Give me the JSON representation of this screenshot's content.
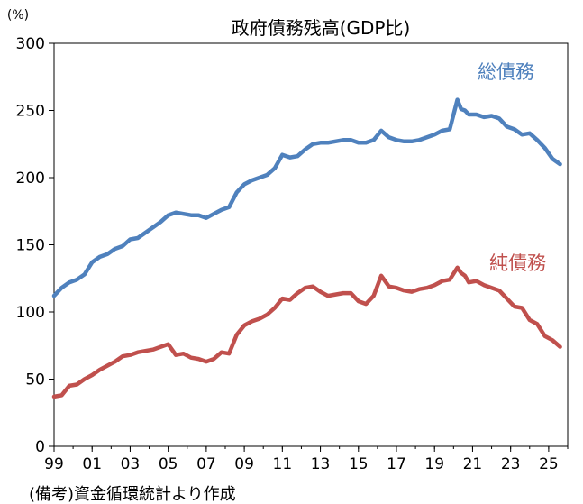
{
  "chart_data": {
    "type": "line",
    "title": "政府債務残高(GDP比)",
    "unit_label": "(%)",
    "note": "(備考)資金循環統計より作成",
    "ylim": [
      0,
      300
    ],
    "yticks": [
      "0",
      "50",
      "100",
      "150",
      "200",
      "250",
      "300"
    ],
    "xlim": [
      1999.0,
      2026.0
    ],
    "xticks": [
      "99",
      "01",
      "03",
      "05",
      "07",
      "09",
      "11",
      "13",
      "15",
      "17",
      "19",
      "21",
      "23",
      "25"
    ],
    "grid": false,
    "series": [
      {
        "name": "総債務",
        "color": "#4F81BD",
        "x": [
          1999.0,
          1999.4,
          1999.8,
          2000.2,
          2000.6,
          2001.0,
          2001.4,
          2001.8,
          2002.2,
          2002.6,
          2003.0,
          2003.4,
          2003.8,
          2004.2,
          2004.6,
          2005.0,
          2005.4,
          2005.8,
          2006.2,
          2006.6,
          2007.0,
          2007.4,
          2007.8,
          2008.2,
          2008.6,
          2009.0,
          2009.4,
          2009.8,
          2010.2,
          2010.6,
          2011.0,
          2011.4,
          2011.8,
          2012.2,
          2012.6,
          2013.0,
          2013.4,
          2013.8,
          2014.2,
          2014.6,
          2015.0,
          2015.4,
          2015.8,
          2016.2,
          2016.6,
          2017.0,
          2017.4,
          2017.8,
          2018.2,
          2018.6,
          2019.0,
          2019.4,
          2019.8,
          2020.2,
          2020.4,
          2020.6,
          2020.8,
          2021.2,
          2021.6,
          2022.0,
          2022.4,
          2022.8,
          2023.2,
          2023.6,
          2024.0,
          2024.4,
          2024.8,
          2025.2,
          2025.6
        ],
        "values": [
          112,
          118,
          122,
          124,
          128,
          137,
          141,
          143,
          147,
          149,
          154,
          155,
          159,
          163,
          167,
          172,
          174,
          173,
          172,
          172,
          170,
          173,
          176,
          178,
          189,
          195,
          198,
          200,
          202,
          207,
          217,
          215,
          216,
          221,
          225,
          226,
          226,
          227,
          228,
          228,
          226,
          226,
          228,
          235,
          230,
          228,
          227,
          227,
          228,
          230,
          232,
          235,
          236,
          258,
          251,
          250,
          247,
          247,
          245,
          246,
          244,
          238,
          236,
          232,
          233,
          228,
          222,
          214,
          210
        ]
      },
      {
        "name": "純債務",
        "color": "#C0504D",
        "x": [
          1999.0,
          1999.4,
          1999.8,
          2000.2,
          2000.6,
          2001.0,
          2001.4,
          2001.8,
          2002.2,
          2002.6,
          2003.0,
          2003.4,
          2003.8,
          2004.2,
          2004.6,
          2005.0,
          2005.4,
          2005.8,
          2006.2,
          2006.6,
          2007.0,
          2007.4,
          2007.8,
          2008.2,
          2008.6,
          2009.0,
          2009.4,
          2009.8,
          2010.2,
          2010.6,
          2011.0,
          2011.4,
          2011.8,
          2012.2,
          2012.6,
          2013.0,
          2013.4,
          2013.8,
          2014.2,
          2014.6,
          2015.0,
          2015.4,
          2015.8,
          2016.2,
          2016.6,
          2017.0,
          2017.4,
          2017.8,
          2018.2,
          2018.6,
          2019.0,
          2019.4,
          2019.8,
          2020.2,
          2020.4,
          2020.6,
          2020.8,
          2021.2,
          2021.6,
          2022.0,
          2022.4,
          2022.8,
          2023.2,
          2023.6,
          2024.0,
          2024.4,
          2024.8,
          2025.2,
          2025.6
        ],
        "values": [
          37,
          38,
          45,
          46,
          50,
          53,
          57,
          60,
          63,
          67,
          68,
          70,
          71,
          72,
          74,
          76,
          68,
          69,
          66,
          65,
          63,
          65,
          70,
          69,
          83,
          90,
          93,
          95,
          98,
          103,
          110,
          109,
          114,
          118,
          119,
          115,
          112,
          113,
          114,
          114,
          108,
          106,
          112,
          127,
          119,
          118,
          116,
          115,
          117,
          118,
          120,
          123,
          124,
          133,
          129,
          127,
          122,
          123,
          120,
          118,
          116,
          110,
          104,
          103,
          94,
          91,
          82,
          79,
          74
        ]
      }
    ]
  }
}
